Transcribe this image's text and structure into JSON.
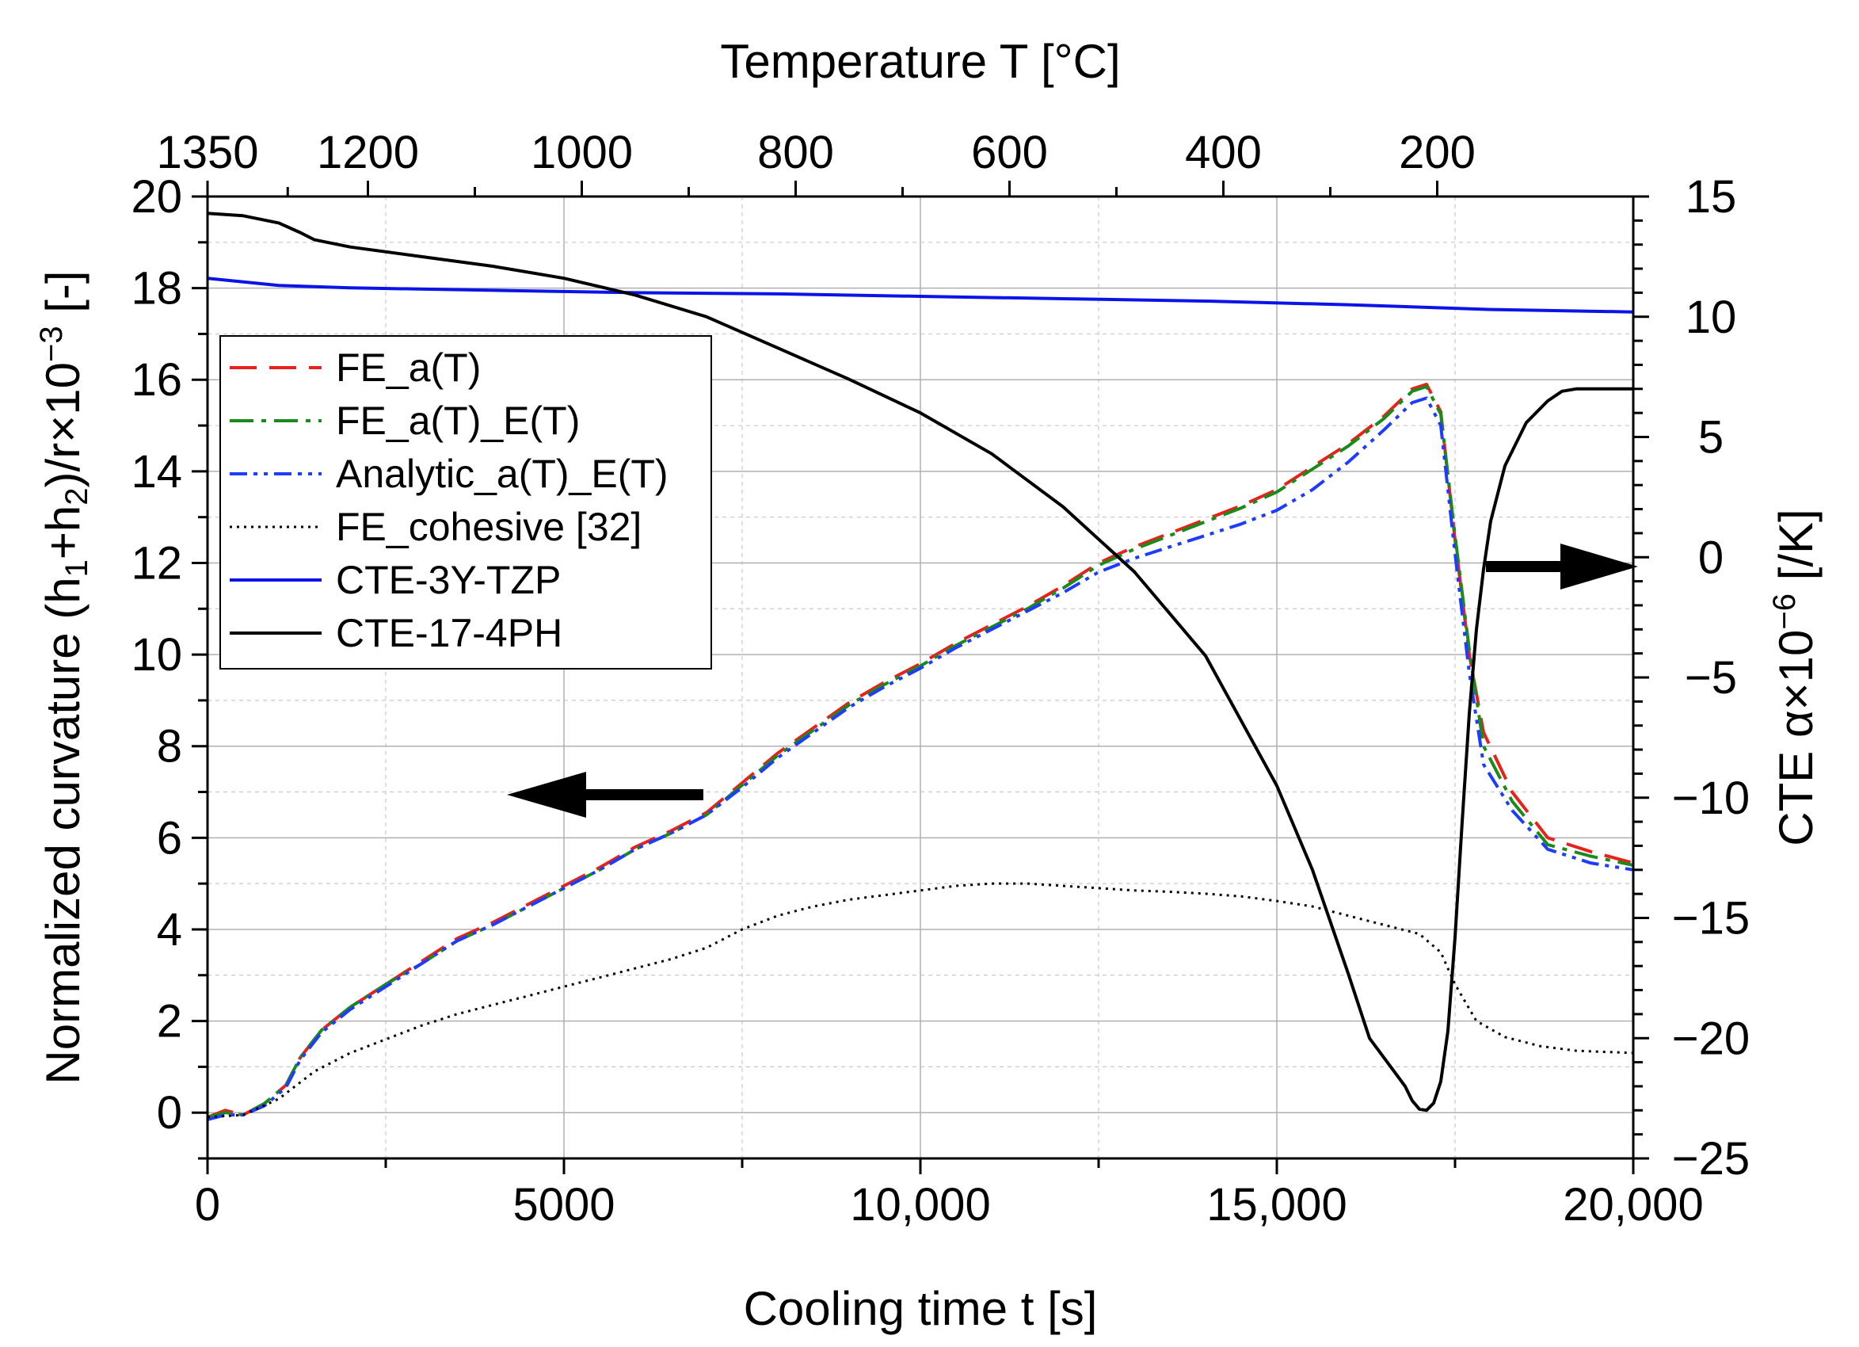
{
  "chart_data": {
    "type": "line",
    "xlabel": "Cooling time t [s]",
    "x2label": "Temperature T [°C]",
    "ylabel_left": "Normalized curvature (h1+h2)/r×10−3 [-]",
    "ylabel_right": "CTE α×10−6 [/K]",
    "xlim": [
      0,
      20000
    ],
    "ylim_left": [
      -1,
      20
    ],
    "ylim_right": [
      -25,
      15
    ],
    "grid": true,
    "legend_position": "upper-left",
    "x_ticks": [
      {
        "value": 0,
        "label": "0"
      },
      {
        "value": 5000,
        "label": "5000"
      },
      {
        "value": 10000,
        "label": "10,000"
      },
      {
        "value": 15000,
        "label": "15,000"
      },
      {
        "value": 20000,
        "label": "20,000"
      }
    ],
    "x2_ticks": [
      {
        "value": 0,
        "label": "1350"
      },
      {
        "value": 2250,
        "label": "1200"
      },
      {
        "value": 5250,
        "label": "1000"
      },
      {
        "value": 8250,
        "label": "800"
      },
      {
        "value": 11250,
        "label": "600"
      },
      {
        "value": 14250,
        "label": "400"
      },
      {
        "value": 17250,
        "label": "200"
      }
    ],
    "y_left_ticks": [
      0,
      2,
      4,
      6,
      8,
      10,
      12,
      14,
      16,
      18,
      20
    ],
    "y_right_ticks": [
      {
        "value": 15,
        "label": "15"
      },
      {
        "value": 10,
        "label": "10"
      },
      {
        "value": 5,
        "label": "5"
      },
      {
        "value": 0,
        "label": "0"
      },
      {
        "value": -5,
        "label": "−5"
      },
      {
        "value": -10,
        "label": "−10"
      },
      {
        "value": -15,
        "label": "−15"
      },
      {
        "value": -20,
        "label": "−20"
      },
      {
        "value": -25,
        "label": "−25"
      }
    ],
    "series": [
      {
        "name": "FE_a(T)",
        "axis": "left",
        "color": "#e8221b",
        "style": "dash",
        "x": [
          0,
          250,
          500,
          800,
          1100,
          1300,
          1600,
          2000,
          2500,
          3000,
          3500,
          4000,
          4500,
          5000,
          5500,
          6000,
          6500,
          7000,
          7500,
          8000,
          8500,
          9000,
          9500,
          10000,
          10500,
          11000,
          11500,
          12000,
          12500,
          13000,
          13500,
          14000,
          14500,
          15000,
          15500,
          16000,
          16500,
          16900,
          17100,
          17300,
          17500,
          17700,
          17900,
          18300,
          18800,
          19400,
          20000
        ],
        "y": [
          -0.1,
          0.05,
          -0.05,
          0.2,
          0.6,
          1.2,
          1.8,
          2.3,
          2.8,
          3.3,
          3.8,
          4.15,
          4.55,
          4.95,
          5.35,
          5.8,
          6.15,
          6.55,
          7.2,
          7.85,
          8.4,
          8.95,
          9.4,
          9.8,
          10.25,
          10.65,
          11.05,
          11.5,
          12.0,
          12.35,
          12.65,
          12.95,
          13.25,
          13.6,
          14.1,
          14.6,
          15.2,
          15.8,
          15.9,
          15.3,
          12.5,
          10.0,
          8.3,
          7.0,
          6.0,
          5.7,
          5.45
        ]
      },
      {
        "name": "FE_a(T)_E(T)",
        "axis": "left",
        "color": "#1a8a1a",
        "style": "dashdot",
        "x": [
          0,
          250,
          500,
          800,
          1100,
          1300,
          1600,
          2000,
          2500,
          3000,
          3500,
          4000,
          4500,
          5000,
          5500,
          6000,
          6500,
          7000,
          7500,
          8000,
          8500,
          9000,
          9500,
          10000,
          10500,
          11000,
          11500,
          12000,
          12500,
          13000,
          13500,
          14000,
          14500,
          15000,
          15500,
          16000,
          16500,
          16900,
          17100,
          17300,
          17500,
          17700,
          17900,
          18300,
          18800,
          19400,
          20000
        ],
        "y": [
          -0.1,
          0.0,
          -0.05,
          0.2,
          0.6,
          1.2,
          1.8,
          2.3,
          2.8,
          3.25,
          3.75,
          4.1,
          4.5,
          4.9,
          5.3,
          5.75,
          6.1,
          6.5,
          7.15,
          7.8,
          8.35,
          8.9,
          9.35,
          9.75,
          10.2,
          10.6,
          11.0,
          11.45,
          11.95,
          12.3,
          12.6,
          12.9,
          13.2,
          13.55,
          14.05,
          14.55,
          15.15,
          15.75,
          15.85,
          15.25,
          12.6,
          10.1,
          8.0,
          6.8,
          5.85,
          5.6,
          5.4
        ]
      },
      {
        "name": "Analytic_a(T)_E(T)",
        "axis": "left",
        "color": "#1e3cff",
        "style": "dashdotdot",
        "x": [
          0,
          250,
          500,
          800,
          1100,
          1300,
          1600,
          2000,
          2500,
          3000,
          3500,
          4000,
          4500,
          5000,
          5500,
          6000,
          6500,
          7000,
          7500,
          8000,
          8500,
          9000,
          9500,
          10000,
          10500,
          11000,
          11500,
          12000,
          12500,
          13000,
          13500,
          14000,
          14500,
          15000,
          15500,
          16000,
          16500,
          16900,
          17100,
          17300,
          17500,
          17700,
          17900,
          18300,
          18800,
          19400,
          20000
        ],
        "y": [
          -0.15,
          -0.05,
          -0.05,
          0.15,
          0.55,
          1.15,
          1.75,
          2.25,
          2.75,
          3.25,
          3.75,
          4.1,
          4.5,
          4.9,
          5.3,
          5.75,
          6.1,
          6.5,
          7.1,
          7.75,
          8.3,
          8.85,
          9.3,
          9.7,
          10.15,
          10.55,
          10.95,
          11.35,
          11.8,
          12.1,
          12.35,
          12.6,
          12.85,
          13.15,
          13.6,
          14.2,
          14.9,
          15.5,
          15.6,
          15.0,
          12.2,
          9.6,
          7.6,
          6.6,
          5.75,
          5.45,
          5.3
        ]
      },
      {
        "name": "FE_cohesive [32]",
        "axis": "left",
        "color": "#000000",
        "style": "dotted",
        "x": [
          0,
          500,
          1000,
          1500,
          2000,
          2500,
          3000,
          3500,
          4000,
          4500,
          5000,
          5500,
          6000,
          6500,
          7000,
          7500,
          8000,
          8500,
          9000,
          9500,
          10000,
          10500,
          11000,
          11500,
          12000,
          12500,
          13000,
          13500,
          14000,
          14500,
          15000,
          15500,
          16000,
          16500,
          17000,
          17300,
          17500,
          17800,
          18200,
          18700,
          19200,
          19700,
          20000
        ],
        "y": [
          -0.1,
          -0.05,
          0.3,
          0.9,
          1.3,
          1.6,
          1.9,
          2.15,
          2.35,
          2.55,
          2.75,
          2.95,
          3.15,
          3.35,
          3.6,
          4.0,
          4.3,
          4.5,
          4.65,
          4.75,
          4.85,
          4.95,
          5.0,
          5.0,
          4.95,
          4.9,
          4.85,
          4.82,
          4.78,
          4.72,
          4.62,
          4.5,
          4.3,
          4.1,
          3.9,
          3.5,
          2.8,
          2.0,
          1.65,
          1.45,
          1.35,
          1.32,
          1.3
        ]
      },
      {
        "name": "CTE-3Y-TZP",
        "axis": "right",
        "color": "#0a14e6",
        "style": "solid",
        "x": [
          0,
          1000,
          2000,
          4000,
          6000,
          8000,
          10000,
          12000,
          14000,
          16000,
          18000,
          20000
        ],
        "y": [
          11.6,
          11.3,
          11.2,
          11.1,
          11.0,
          10.95,
          10.85,
          10.75,
          10.65,
          10.5,
          10.3,
          10.2
        ]
      },
      {
        "name": "CTE-17-4PH",
        "axis": "right",
        "color": "#000000",
        "style": "solid",
        "x": [
          0,
          500,
          1000,
          1300,
          1500,
          2000,
          3000,
          4000,
          5000,
          6000,
          7000,
          8000,
          9000,
          10000,
          11000,
          12000,
          13000,
          14000,
          15000,
          15500,
          16000,
          16300,
          16600,
          16800,
          16900,
          17000,
          17100,
          17200,
          17300,
          17400,
          17500,
          17600,
          17700,
          17800,
          17900,
          18000,
          18200,
          18500,
          18800,
          19000,
          19200,
          19600,
          20000
        ],
        "y": [
          14.3,
          14.2,
          13.9,
          13.5,
          13.2,
          12.9,
          12.5,
          12.1,
          11.6,
          10.9,
          10.0,
          8.7,
          7.4,
          6.0,
          4.3,
          2.1,
          -0.6,
          -4.1,
          -9.5,
          -13.0,
          -17.3,
          -20.0,
          -21.2,
          -22.0,
          -22.6,
          -22.95,
          -23.0,
          -22.7,
          -21.8,
          -19.7,
          -15.8,
          -11.0,
          -6.5,
          -3.0,
          -0.5,
          1.5,
          3.8,
          5.6,
          6.5,
          6.9,
          7.0,
          7.0,
          7.0
        ]
      }
    ],
    "annotations": [
      {
        "type": "arrow",
        "direction": "left",
        "meaning": "series use left axis"
      },
      {
        "type": "arrow",
        "direction": "right",
        "meaning": "CTE series use right axis"
      }
    ]
  }
}
